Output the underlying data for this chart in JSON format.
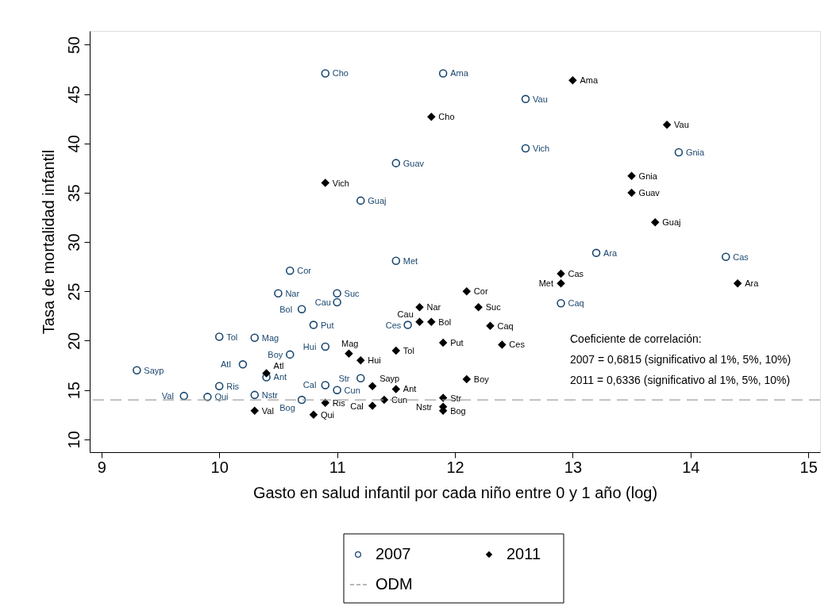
{
  "chart_data": {
    "type": "scatter",
    "xlabel": "Gasto en salud infantil por cada niño entre 0 y 1 año (log)",
    "ylabel": "Tasa de mortalidad infantil",
    "xlim": [
      8.9,
      15.1
    ],
    "ylim": [
      8.7,
      51.4
    ],
    "xticks": [
      9,
      10,
      11,
      12,
      13,
      14,
      15
    ],
    "yticks": [
      10,
      15,
      20,
      25,
      30,
      35,
      40,
      45,
      50
    ],
    "grid": false,
    "legend": "bottom",
    "series": [
      {
        "name": "2007",
        "color": "#1a476f",
        "marker": "circle",
        "x": [
          10.9,
          11.9,
          12.6,
          12.6,
          13.9,
          11.5,
          11.2,
          13.2,
          14.3,
          11.5,
          10.6,
          10.5,
          11.0,
          11.0,
          10.7,
          10.8,
          11.6,
          10.0,
          10.3,
          10.9,
          10.6,
          10.2,
          9.3,
          10.4,
          11.2,
          10.0,
          10.9,
          11.0,
          9.7,
          9.9,
          10.3,
          10.7,
          12.9
        ],
        "values": [
          47.1,
          47.1,
          44.5,
          39.5,
          39.1,
          38.0,
          34.2,
          28.9,
          28.5,
          28.1,
          27.1,
          24.8,
          24.8,
          23.9,
          23.2,
          21.6,
          21.6,
          20.4,
          20.3,
          19.4,
          18.6,
          17.6,
          17.0,
          16.3,
          16.2,
          15.4,
          15.5,
          15.0,
          14.4,
          14.3,
          14.5,
          14.0,
          23.8
        ],
        "value_labels": [
          "Cho",
          "Ama",
          "Vau",
          "Vich",
          "Gnia",
          "Guav",
          "Guaj",
          "Ara",
          "Cas",
          "Met",
          "Cor",
          "Nar",
          "Suc",
          "Cau",
          "Bol",
          "Put",
          "Ces",
          "Tol",
          "Mag",
          "Hui",
          "Boy",
          "Atl",
          "Sayp",
          "Ant",
          "Str",
          "Ris",
          "Cal",
          "Cun",
          "Val",
          "Qui",
          "Nstr",
          "Bog",
          "Caq"
        ]
      },
      {
        "name": "2011",
        "color": "#000000",
        "marker": "diamond",
        "x": [
          13.0,
          11.8,
          13.8,
          13.5,
          13.5,
          13.7,
          10.9,
          12.9,
          12.9,
          14.4,
          12.1,
          12.2,
          12.3,
          12.4,
          12.1,
          11.9,
          11.7,
          11.7,
          11.8,
          11.5,
          11.1,
          11.2,
          10.4,
          11.3,
          11.5,
          11.4,
          11.3,
          10.9,
          10.8,
          10.3,
          11.9,
          11.9,
          11.9
        ],
        "values": [
          46.4,
          42.7,
          41.9,
          36.7,
          35.0,
          32.0,
          36.0,
          26.8,
          25.8,
          25.8,
          25.0,
          23.4,
          21.5,
          19.6,
          16.1,
          19.8,
          23.4,
          21.9,
          21.9,
          19.0,
          18.7,
          18.0,
          16.7,
          15.4,
          15.1,
          14.0,
          13.4,
          13.7,
          12.5,
          12.9,
          14.2,
          13.3,
          12.9
        ],
        "value_labels": [
          "Ama",
          "Cho",
          "Vau",
          "Gnia",
          "Guav",
          "Guaj",
          "Vich",
          "Cas",
          "Met",
          "Ara",
          "Cor",
          "Suc",
          "Caq",
          "Ces",
          "Boy",
          "Put",
          "Nar",
          "Cau",
          "Bol",
          "Tol",
          "Mag",
          "Hui",
          "Atl",
          "Sayp",
          "Ant",
          "Cun",
          "Cal",
          "Ris",
          "Qui",
          "Val",
          "Str",
          "Nstr",
          "Bog"
        ]
      }
    ],
    "ref_lines": [
      {
        "axis": "y",
        "value": 14,
        "label": "ODM",
        "color": "#a0a0a0",
        "line_style": "dashed"
      }
    ],
    "annotations": [
      "Coeficiente de correlación:",
      "2007 = 0,6815 (significativo al 1%, 5%, 10%)",
      "2011 = 0,6336 (significativo al 1%, 5%, 10%)"
    ]
  }
}
